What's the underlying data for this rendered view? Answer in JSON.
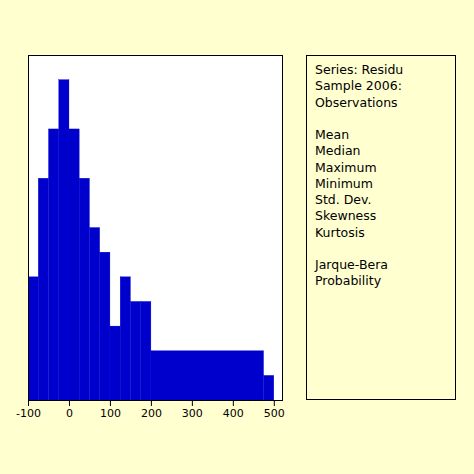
{
  "chart_data": {
    "type": "histogram",
    "bins": [
      -100,
      -75,
      -50,
      -25,
      0,
      25,
      50,
      75,
      100,
      125,
      150,
      175,
      200,
      475,
      500
    ],
    "values": [
      5,
      9,
      11,
      13,
      11,
      9,
      7,
      6,
      3,
      5,
      4,
      4,
      2,
      1
    ],
    "color": "#0000CC",
    "xlim": [
      -100,
      520
    ],
    "xticks": [
      -100,
      0,
      100,
      200,
      300,
      400,
      500
    ],
    "ylim": [
      0,
      14
    ],
    "tick_labels": "x",
    "annotations": [
      [
        "Series: Residu",
        "Sample 2006:",
        "Observations"
      ],
      [
        "Mean",
        "Median",
        "Maximum",
        "Minimum",
        "Std. Dev.",
        "Skewness",
        "Kurtosis"
      ],
      [
        "Jarque-Bera",
        "Probability"
      ]
    ]
  }
}
